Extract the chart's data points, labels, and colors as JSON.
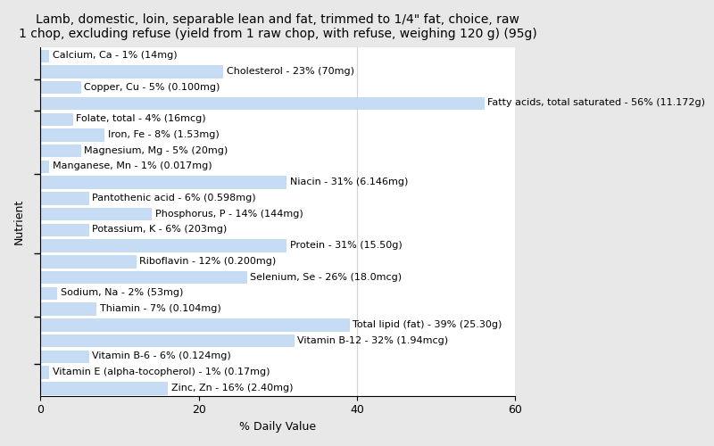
{
  "title": "Lamb, domestic, loin, separable lean and fat, trimmed to 1/4\" fat, choice, raw\n1 chop, excluding refuse (yield from 1 raw chop, with refuse, weighing 120 g) (95g)",
  "xlabel": "% Daily Value",
  "ylabel": "Nutrient",
  "xlim": [
    0,
    60
  ],
  "xticks": [
    0,
    20,
    40,
    60
  ],
  "bar_color": "#c6dcf5",
  "bar_edge_color": "#b0cce8",
  "background_color": "#e8e8e8",
  "plot_bg_color": "#ffffff",
  "nutrients": [
    {
      "label": "Calcium, Ca - 1% (14mg)",
      "value": 1
    },
    {
      "label": "Cholesterol - 23% (70mg)",
      "value": 23
    },
    {
      "label": "Copper, Cu - 5% (0.100mg)",
      "value": 5
    },
    {
      "label": "Fatty acids, total saturated - 56% (11.172g)",
      "value": 56
    },
    {
      "label": "Folate, total - 4% (16mcg)",
      "value": 4
    },
    {
      "label": "Iron, Fe - 8% (1.53mg)",
      "value": 8
    },
    {
      "label": "Magnesium, Mg - 5% (20mg)",
      "value": 5
    },
    {
      "label": "Manganese, Mn - 1% (0.017mg)",
      "value": 1
    },
    {
      "label": "Niacin - 31% (6.146mg)",
      "value": 31
    },
    {
      "label": "Pantothenic acid - 6% (0.598mg)",
      "value": 6
    },
    {
      "label": "Phosphorus, P - 14% (144mg)",
      "value": 14
    },
    {
      "label": "Potassium, K - 6% (203mg)",
      "value": 6
    },
    {
      "label": "Protein - 31% (15.50g)",
      "value": 31
    },
    {
      "label": "Riboflavin - 12% (0.200mg)",
      "value": 12
    },
    {
      "label": "Selenium, Se - 26% (18.0mcg)",
      "value": 26
    },
    {
      "label": "Sodium, Na - 2% (53mg)",
      "value": 2
    },
    {
      "label": "Thiamin - 7% (0.104mg)",
      "value": 7
    },
    {
      "label": "Total lipid (fat) - 39% (25.30g)",
      "value": 39
    },
    {
      "label": "Vitamin B-12 - 32% (1.94mcg)",
      "value": 32
    },
    {
      "label": "Vitamin B-6 - 6% (0.124mg)",
      "value": 6
    },
    {
      "label": "Vitamin E (alpha-tocopherol) - 1% (0.17mg)",
      "value": 1
    },
    {
      "label": "Zinc, Zn - 16% (2.40mg)",
      "value": 16
    }
  ],
  "title_fontsize": 10,
  "axis_label_fontsize": 9,
  "bar_label_fontsize": 8,
  "tick_fontsize": 9,
  "left_tick_positions": [
    1.5,
    3.5,
    7.5,
    12.5,
    16.5,
    19.5
  ],
  "bar_height": 0.75
}
